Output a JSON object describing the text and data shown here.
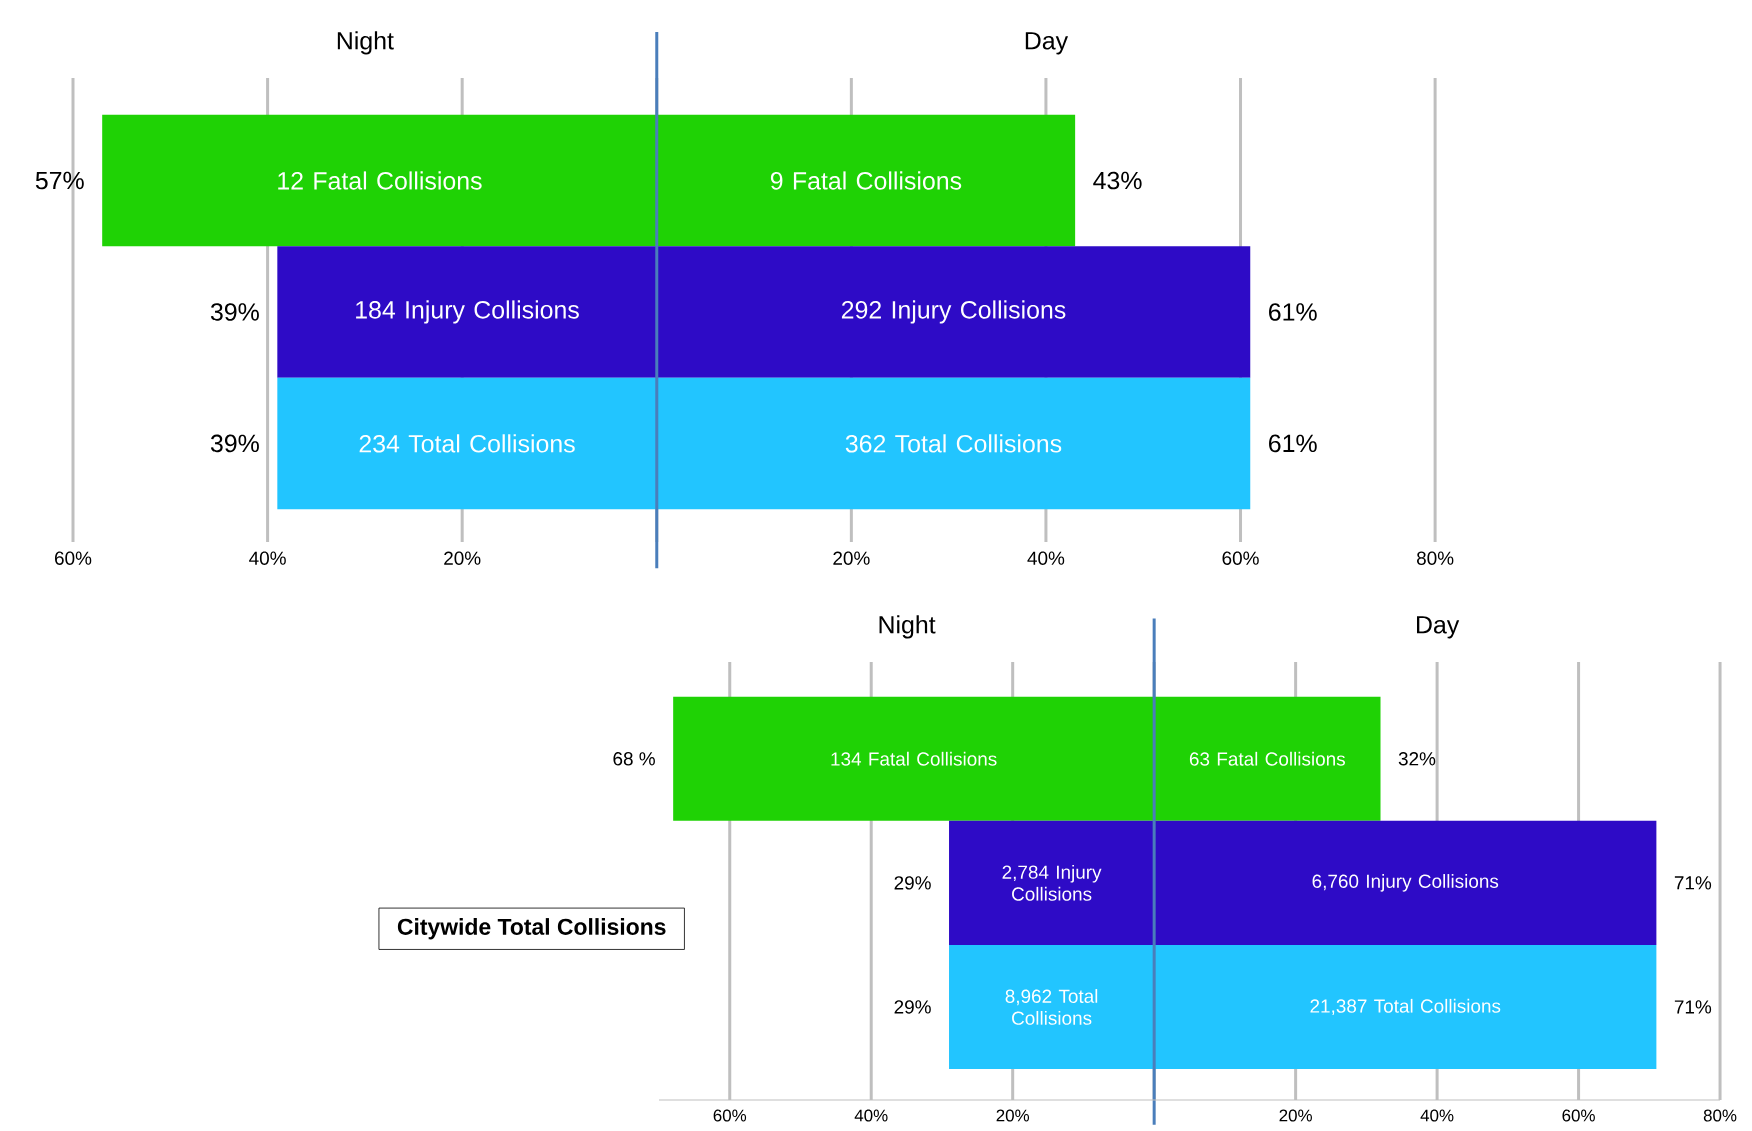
{
  "chart_data": [
    {
      "type": "bar",
      "orientation": "horizontal",
      "categories": [
        null,
        null,
        null
      ],
      "series": [
        {
          "name": "Night",
          "colors": [
            "#1fd205",
            "#2e0bc6",
            "#22c5ff"
          ],
          "values": [
            57,
            39,
            39
          ],
          "base": [
            -57,
            -39,
            -39
          ],
          "value_labels": [
            "57%",
            "39%",
            "39%"
          ]
        },
        {
          "name": "Day",
          "colors": [
            "#1fd205",
            "#2e0bc6",
            "#22c5ff"
          ],
          "values": [
            43,
            61,
            61
          ],
          "value_labels": [
            "43%",
            "61%",
            "61%"
          ]
        }
      ],
      "xlim": [
        -60,
        80
      ],
      "xticks": [
        {
          "value": -60,
          "label": "60%"
        },
        {
          "value": -40,
          "label": "40%"
        },
        {
          "value": -20,
          "label": "20%"
        },
        {
          "value": 0,
          "label": null
        },
        {
          "value": 20,
          "label": "20%"
        },
        {
          "value": 40,
          "label": "40%"
        },
        {
          "value": 60,
          "label": "60%"
        },
        {
          "value": 80,
          "label": "80%"
        }
      ],
      "ref_lines": [
        {
          "axis": "x",
          "value": 0,
          "color": "#4a7ebb"
        }
      ],
      "annotations": [
        "12 Fatal Collisions",
        "9 Fatal Collisions",
        "184 Injury Collisions",
        "292 Injury Collisions",
        "234 Total Collisions",
        "362 Total Collisions"
      ],
      "grid": "x",
      "tick_labels": "x"
    },
    {
      "type": "bar",
      "orientation": "horizontal",
      "categories": [
        null,
        null,
        null
      ],
      "series": [
        {
          "name": "Night",
          "colors": [
            "#1fd205",
            "#2e0bc6",
            "#22c5ff"
          ],
          "values": [
            68,
            29,
            29
          ],
          "base": [
            -68,
            -29,
            -29
          ],
          "value_labels": [
            "68 %",
            "29%",
            "29%"
          ]
        },
        {
          "name": "Day",
          "colors": [
            "#1fd205",
            "#2e0bc6",
            "#22c5ff"
          ],
          "values": [
            32,
            71,
            71
          ],
          "value_labels": [
            "32%",
            "71%",
            "71%"
          ]
        }
      ],
      "xlim": [
        -70,
        80
      ],
      "xticks": [
        {
          "value": -60,
          "label": "60%"
        },
        {
          "value": -40,
          "label": "40%"
        },
        {
          "value": -20,
          "label": "20%"
        },
        {
          "value": 0,
          "label": null
        },
        {
          "value": 20,
          "label": "20%"
        },
        {
          "value": 40,
          "label": "40%"
        },
        {
          "value": 60,
          "label": "60%"
        },
        {
          "value": 80,
          "label": "80%"
        }
      ],
      "ref_lines": [
        {
          "axis": "x",
          "value": 0,
          "color": "#4a7ebb"
        }
      ],
      "annotations": [
        "134 Fatal Collisions",
        "63 Fatal Collisions",
        "2,784 Injury Collisions",
        "6,760 Injury Collisions",
        "8,962 Total Collisions",
        "21,387 Total Collisions",
        "Citywide Total Collisions"
      ],
      "grid": "x",
      "tick_labels": "x"
    }
  ]
}
